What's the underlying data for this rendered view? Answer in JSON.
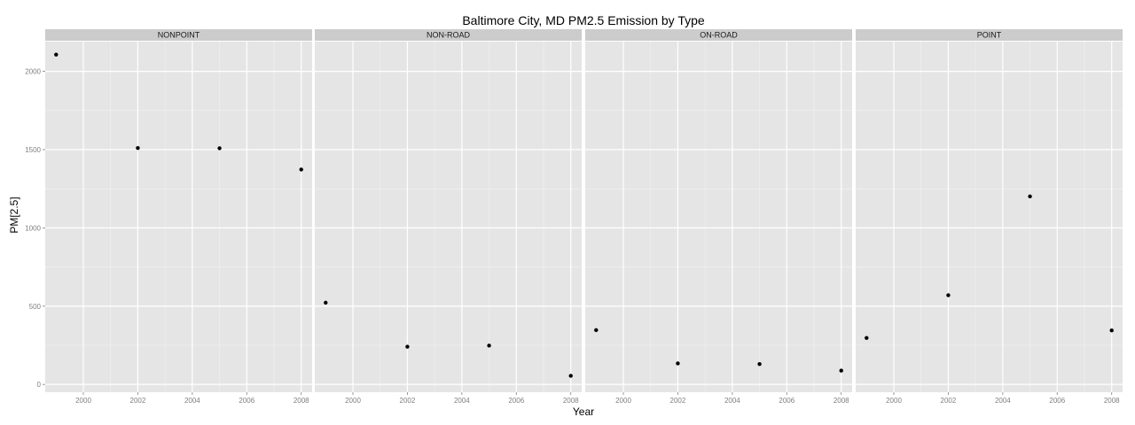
{
  "chart_data": {
    "type": "scatter",
    "title": "Baltimore City, MD PM2.5 Emission by Type",
    "xlabel": "Year",
    "ylabel": "PM[2.5]",
    "xlim": [
      1998.6,
      2008.4
    ],
    "ylim": [
      -50,
      2190
    ],
    "xticks": [
      2000,
      2002,
      2004,
      2006,
      2008
    ],
    "yticks": [
      0,
      500,
      1000,
      1500,
      2000
    ],
    "grid": true,
    "facets": [
      {
        "name": "NONPOINT",
        "x": [
          1999,
          2002,
          2005,
          2008
        ],
        "y": [
          2107,
          1510,
          1509,
          1373
        ]
      },
      {
        "name": "NON-ROAD",
        "x": [
          1999,
          2002,
          2005,
          2008
        ],
        "y": [
          522,
          241,
          248,
          55
        ]
      },
      {
        "name": "ON-ROAD",
        "x": [
          1999,
          2002,
          2005,
          2008
        ],
        "y": [
          347,
          134,
          130,
          88
        ]
      },
      {
        "name": "POINT",
        "x": [
          1999,
          2002,
          2005,
          2008
        ],
        "y": [
          297,
          570,
          1201,
          345
        ]
      }
    ]
  }
}
